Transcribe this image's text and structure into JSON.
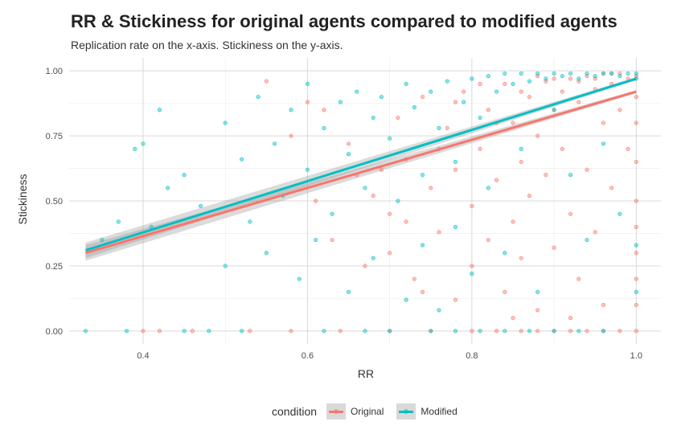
{
  "chart_data": {
    "type": "scatter",
    "title": "RR & Stickiness for original agents compared to modified agents",
    "subtitle": "Replication rate on the x-axis. Stickiness on the y-axis.",
    "xlabel": "RR",
    "ylabel": "Stickiness",
    "xlim": [
      0.31,
      1.03
    ],
    "ylim": [
      -0.05,
      1.05
    ],
    "x_ticks": [
      "0.4",
      "0.6",
      "0.8",
      "1.0"
    ],
    "y_ticks": [
      "0.00",
      "0.25",
      "0.50",
      "0.75",
      "1.00"
    ],
    "grid": true,
    "legend_position": "bottom",
    "legend_title": "condition",
    "series": [
      {
        "name": "Original",
        "color": "#F8766D",
        "fit_line": {
          "x": [
            0.33,
            1.0
          ],
          "y": [
            0.3,
            0.92
          ]
        },
        "points": [
          [
            0.4,
            0.0
          ],
          [
            0.42,
            0.0
          ],
          [
            0.46,
            0.0
          ],
          [
            0.53,
            0.0
          ],
          [
            0.58,
            0.0
          ],
          [
            0.64,
            0.0
          ],
          [
            0.7,
            0.0
          ],
          [
            0.75,
            0.0
          ],
          [
            0.8,
            0.0
          ],
          [
            0.83,
            0.0
          ],
          [
            0.86,
            0.0
          ],
          [
            0.88,
            0.0
          ],
          [
            0.9,
            0.0
          ],
          [
            0.92,
            0.0
          ],
          [
            0.94,
            0.0
          ],
          [
            0.96,
            0.0
          ],
          [
            0.98,
            0.0
          ],
          [
            1.0,
            0.0
          ],
          [
            0.55,
            0.96
          ],
          [
            0.6,
            0.88
          ],
          [
            0.62,
            0.85
          ],
          [
            0.65,
            0.72
          ],
          [
            0.66,
            0.6
          ],
          [
            0.68,
            0.52
          ],
          [
            0.7,
            0.45
          ],
          [
            0.7,
            0.3
          ],
          [
            0.71,
            0.82
          ],
          [
            0.72,
            0.66
          ],
          [
            0.73,
            0.2
          ],
          [
            0.74,
            0.9
          ],
          [
            0.75,
            0.55
          ],
          [
            0.76,
            0.38
          ],
          [
            0.77,
            0.78
          ],
          [
            0.78,
            0.12
          ],
          [
            0.78,
            0.62
          ],
          [
            0.79,
            0.92
          ],
          [
            0.8,
            0.48
          ],
          [
            0.8,
            0.25
          ],
          [
            0.81,
            0.7
          ],
          [
            0.82,
            0.85
          ],
          [
            0.82,
            0.35
          ],
          [
            0.83,
            0.58
          ],
          [
            0.84,
            0.95
          ],
          [
            0.84,
            0.15
          ],
          [
            0.85,
            0.8
          ],
          [
            0.85,
            0.42
          ],
          [
            0.86,
            0.65
          ],
          [
            0.86,
            0.28
          ],
          [
            0.87,
            0.9
          ],
          [
            0.87,
            0.52
          ],
          [
            0.88,
            0.75
          ],
          [
            0.88,
            0.08
          ],
          [
            0.89,
            0.96
          ],
          [
            0.89,
            0.6
          ],
          [
            0.9,
            0.85
          ],
          [
            0.9,
            0.32
          ],
          [
            0.91,
            0.92
          ],
          [
            0.91,
            0.7
          ],
          [
            0.92,
            0.97
          ],
          [
            0.92,
            0.45
          ],
          [
            0.93,
            0.88
          ],
          [
            0.93,
            0.2
          ],
          [
            0.94,
            0.98
          ],
          [
            0.94,
            0.62
          ],
          [
            0.95,
            0.93
          ],
          [
            0.95,
            0.38
          ],
          [
            0.96,
            0.99
          ],
          [
            0.96,
            0.8
          ],
          [
            0.97,
            0.95
          ],
          [
            0.97,
            0.55
          ],
          [
            0.98,
            0.99
          ],
          [
            0.98,
            0.85
          ],
          [
            0.99,
            0.97
          ],
          [
            0.99,
            0.7
          ],
          [
            1.0,
            0.98
          ],
          [
            1.0,
            0.9
          ],
          [
            1.0,
            0.8
          ],
          [
            1.0,
            0.65
          ],
          [
            1.0,
            0.5
          ],
          [
            1.0,
            0.4
          ],
          [
            1.0,
            0.3
          ],
          [
            1.0,
            0.2
          ],
          [
            1.0,
            0.1
          ],
          [
            0.96,
            0.1
          ],
          [
            0.92,
            0.05
          ],
          [
            0.85,
            0.05
          ],
          [
            0.58,
            0.75
          ],
          [
            0.61,
            0.5
          ],
          [
            0.63,
            0.35
          ],
          [
            0.67,
            0.25
          ],
          [
            0.69,
            0.62
          ],
          [
            0.72,
            0.42
          ],
          [
            0.74,
            0.15
          ],
          [
            0.76,
            0.7
          ],
          [
            0.78,
            0.88
          ],
          [
            0.81,
            0.95
          ],
          [
            0.83,
            0.8
          ],
          [
            0.86,
            0.92
          ],
          [
            0.88,
            0.98
          ],
          [
            0.9,
            0.97
          ],
          [
            0.93,
            0.96
          ],
          [
            0.95,
            0.97
          ],
          [
            0.97,
            0.99
          ]
        ]
      },
      {
        "name": "Modified",
        "color": "#00BFC4",
        "fit_line": {
          "x": [
            0.33,
            1.0
          ],
          "y": [
            0.31,
            0.97
          ]
        },
        "points": [
          [
            0.33,
            0.0
          ],
          [
            0.35,
            0.35
          ],
          [
            0.37,
            0.42
          ],
          [
            0.39,
            0.7
          ],
          [
            0.4,
            0.72
          ],
          [
            0.41,
            0.4
          ],
          [
            0.42,
            0.85
          ],
          [
            0.43,
            0.55
          ],
          [
            0.45,
            0.6
          ],
          [
            0.47,
            0.48
          ],
          [
            0.48,
            0.0
          ],
          [
            0.5,
            0.25
          ],
          [
            0.5,
            0.8
          ],
          [
            0.52,
            0.66
          ],
          [
            0.53,
            0.42
          ],
          [
            0.54,
            0.9
          ],
          [
            0.55,
            0.3
          ],
          [
            0.56,
            0.72
          ],
          [
            0.57,
            0.52
          ],
          [
            0.58,
            0.85
          ],
          [
            0.59,
            0.2
          ],
          [
            0.6,
            0.62
          ],
          [
            0.6,
            0.95
          ],
          [
            0.61,
            0.35
          ],
          [
            0.62,
            0.78
          ],
          [
            0.63,
            0.45
          ],
          [
            0.64,
            0.88
          ],
          [
            0.65,
            0.15
          ],
          [
            0.65,
            0.68
          ],
          [
            0.66,
            0.92
          ],
          [
            0.67,
            0.55
          ],
          [
            0.68,
            0.82
          ],
          [
            0.68,
            0.28
          ],
          [
            0.69,
            0.9
          ],
          [
            0.7,
            0.0
          ],
          [
            0.7,
            0.74
          ],
          [
            0.71,
            0.5
          ],
          [
            0.72,
            0.95
          ],
          [
            0.72,
            0.12
          ],
          [
            0.73,
            0.86
          ],
          [
            0.74,
            0.6
          ],
          [
            0.74,
            0.33
          ],
          [
            0.75,
            0.92
          ],
          [
            0.76,
            0.78
          ],
          [
            0.76,
            0.08
          ],
          [
            0.77,
            0.96
          ],
          [
            0.78,
            0.65
          ],
          [
            0.78,
            0.4
          ],
          [
            0.79,
            0.88
          ],
          [
            0.8,
            0.97
          ],
          [
            0.8,
            0.22
          ],
          [
            0.81,
            0.82
          ],
          [
            0.82,
            0.98
          ],
          [
            0.82,
            0.55
          ],
          [
            0.83,
            0.92
          ],
          [
            0.84,
            0.99
          ],
          [
            0.84,
            0.3
          ],
          [
            0.85,
            0.95
          ],
          [
            0.86,
            0.99
          ],
          [
            0.86,
            0.7
          ],
          [
            0.87,
            0.96
          ],
          [
            0.88,
            0.99
          ],
          [
            0.88,
            0.15
          ],
          [
            0.89,
            0.97
          ],
          [
            0.9,
            0.99
          ],
          [
            0.9,
            0.85
          ],
          [
            0.91,
            0.98
          ],
          [
            0.92,
            0.99
          ],
          [
            0.92,
            0.6
          ],
          [
            0.93,
            0.97
          ],
          [
            0.94,
            0.99
          ],
          [
            0.94,
            0.35
          ],
          [
            0.95,
            0.98
          ],
          [
            0.96,
            0.99
          ],
          [
            0.96,
            0.72
          ],
          [
            0.97,
            0.99
          ],
          [
            0.98,
            0.98
          ],
          [
            0.98,
            0.45
          ],
          [
            0.99,
            0.99
          ],
          [
            1.0,
            0.99
          ],
          [
            1.0,
            0.97
          ],
          [
            1.0,
            0.33
          ],
          [
            1.0,
            0.15
          ],
          [
            0.96,
            0.0
          ],
          [
            0.93,
            0.0
          ],
          [
            0.9,
            0.0
          ],
          [
            0.87,
            0.0
          ],
          [
            0.84,
            0.0
          ],
          [
            0.81,
            0.0
          ],
          [
            0.78,
            0.0
          ],
          [
            0.75,
            0.0
          ],
          [
            0.67,
            0.0
          ],
          [
            0.62,
            0.0
          ],
          [
            0.52,
            0.0
          ],
          [
            0.45,
            0.0
          ],
          [
            0.38,
            0.0
          ]
        ]
      }
    ]
  }
}
